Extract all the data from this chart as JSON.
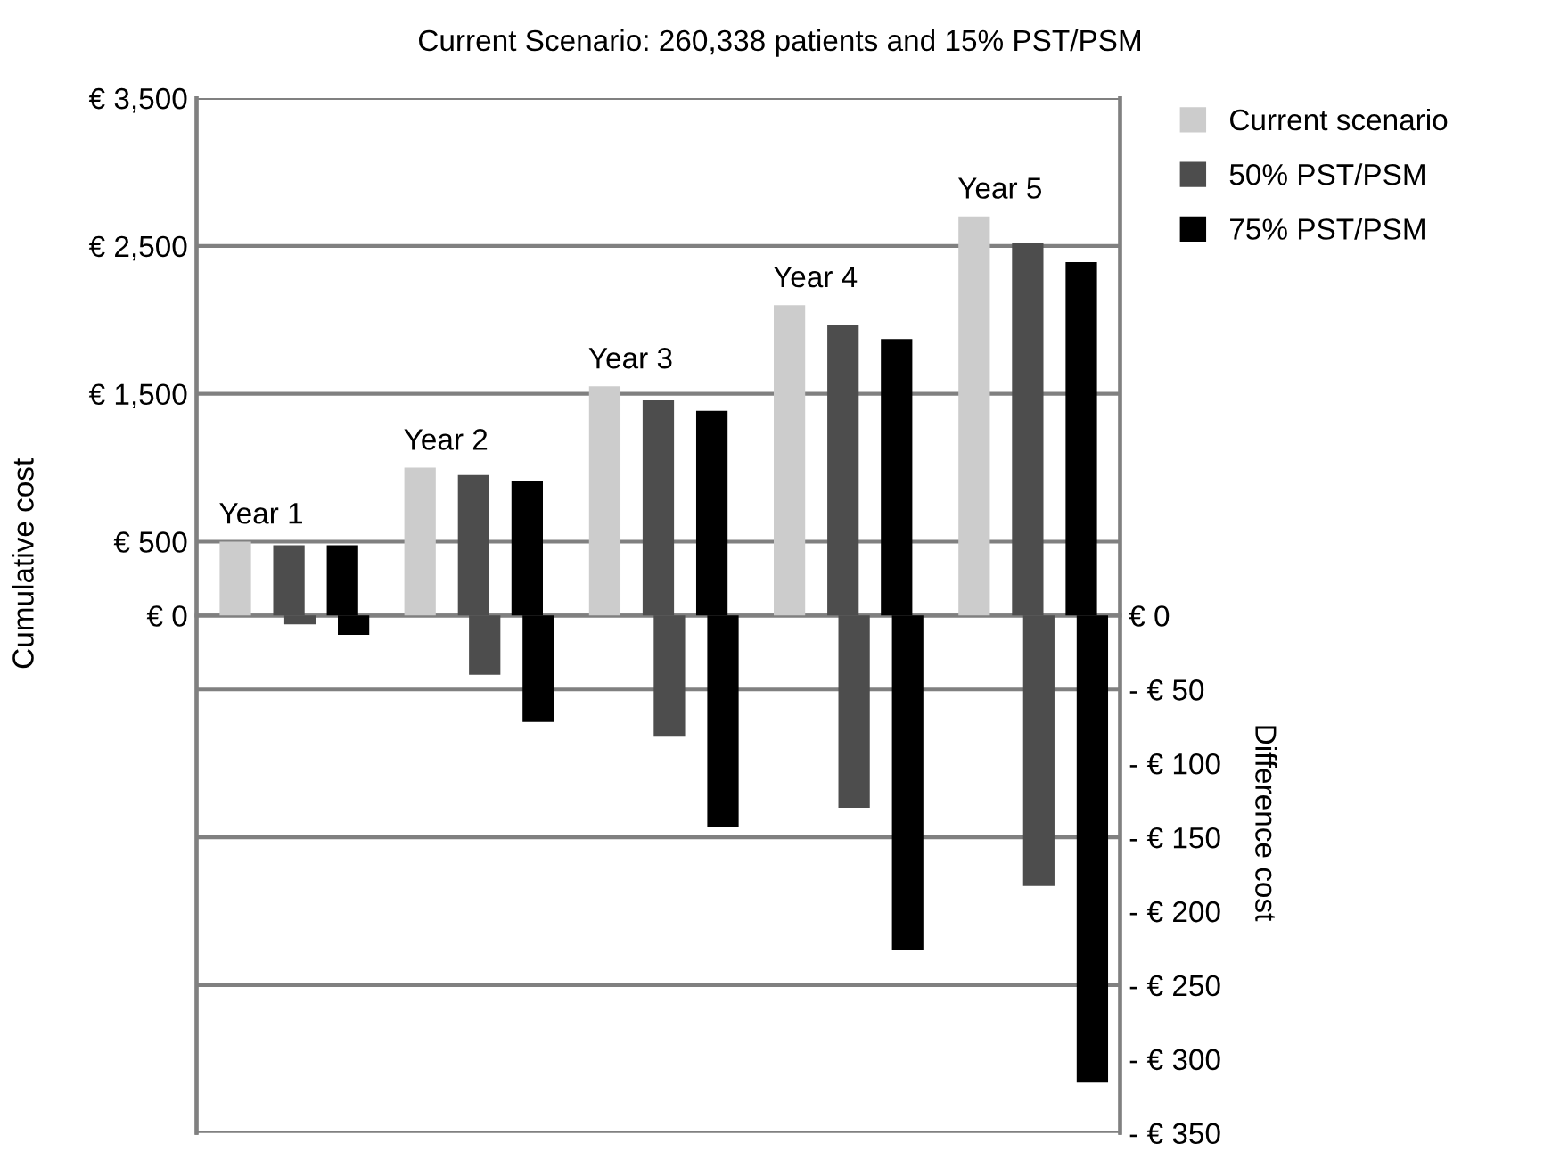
{
  "chart_data": {
    "type": "bar",
    "title": "Current Scenario: 260,338 patients and 15% PST/PSM",
    "categories": [
      "Year 1",
      "Year 2",
      "Year 3",
      "Year 4",
      "Year 5"
    ],
    "series": [
      {
        "name": "Current scenario",
        "color": "#cccccc",
        "values": [
          500,
          1000,
          1550,
          2100,
          2700
        ]
      },
      {
        "name": "50% PST/PSM",
        "color": "#4d4d4d",
        "values": [
          475,
          950,
          1455,
          1965,
          2520
        ]
      },
      {
        "name": "75% PST/PSM",
        "color": "#000000",
        "values": [
          475,
          910,
          1385,
          1870,
          2390
        ]
      },
      {
        "color": "#4d4d4d",
        "axis": "y2",
        "values": [
          -6,
          -40,
          -82,
          -130,
          -183
        ]
      },
      {
        "color": "#000000",
        "axis": "y2",
        "values": [
          -13,
          -72,
          -143,
          -226,
          -316
        ]
      }
    ],
    "ylabel": "Cumulative cost",
    "y2label": "Difference cost",
    "ylim": [
      -3500,
      3500
    ],
    "yticks": [
      {
        "value": 0,
        "label": "€ 0"
      },
      {
        "value": 500,
        "label": "€ 500"
      },
      {
        "value": 1500,
        "label": "€ 1,500"
      },
      {
        "value": 2500,
        "label": "€ 2,500"
      },
      {
        "value": 3500,
        "label": "€ 3,500"
      },
      {
        "value": -500,
        "label": null
      },
      {
        "value": -1500,
        "label": null
      },
      {
        "value": -2500,
        "label": null
      },
      {
        "value": -3500,
        "label": null
      }
    ],
    "y2lim": [
      -350,
      350
    ],
    "y2ticks": [
      {
        "value": 0,
        "label": "€ 0"
      },
      {
        "value": -50,
        "label": "- € 50"
      },
      {
        "value": -100,
        "label": "- € 100"
      },
      {
        "value": -150,
        "label": "- € 150"
      },
      {
        "value": -200,
        "label": "- € 200"
      },
      {
        "value": -250,
        "label": "- € 250"
      },
      {
        "value": -300,
        "label": "- € 300"
      },
      {
        "value": -350,
        "label": "- € 350"
      }
    ],
    "grid": "y",
    "legend": "top right",
    "tick_labels": "y"
  }
}
